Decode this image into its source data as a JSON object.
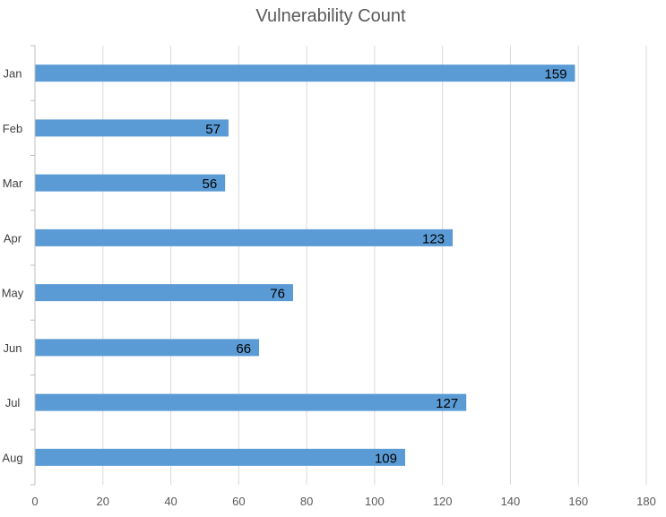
{
  "chart_data": {
    "type": "bar",
    "orientation": "horizontal",
    "title": "Vulnerability Count",
    "categories": [
      "Jan",
      "Feb",
      "Mar",
      "Apr",
      "May",
      "Jun",
      "Jul",
      "Aug"
    ],
    "values": [
      159,
      57,
      56,
      123,
      76,
      66,
      127,
      109
    ],
    "xlim": [
      0,
      180
    ],
    "xticks": [
      "0",
      "20",
      "40",
      "60",
      "80",
      "100",
      "120",
      "140",
      "160",
      "180"
    ],
    "xlabel": "",
    "ylabel": "",
    "grid": true,
    "legend": "none",
    "bar_color": "#5b9bd5"
  }
}
